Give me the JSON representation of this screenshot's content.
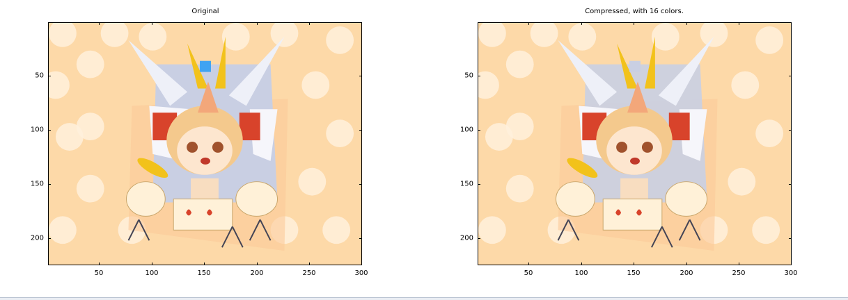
{
  "figure": {
    "panels": [
      {
        "title": "Original",
        "x_ticks": [
          "50",
          "100",
          "150",
          "200",
          "250",
          "300"
        ],
        "y_ticks": [
          "50",
          "100",
          "150",
          "200"
        ],
        "image_desc": "chibi-character-drummer"
      },
      {
        "title": "Compressed, with 16 colors.",
        "x_ticks": [
          "50",
          "100",
          "150",
          "200",
          "250",
          "300"
        ],
        "y_ticks": [
          "50",
          "100",
          "150",
          "200"
        ],
        "image_desc": "chibi-character-drummer-16-colors"
      }
    ]
  },
  "colors": {
    "background_peach": "#fdd9a8",
    "polka_dot": "#fff0dc",
    "mech_gray": "#c9cfe3",
    "hair_gold": "#f4c98d",
    "accent_red": "#d8432b",
    "accent_yellow": "#f2c21b",
    "gem_blue": "#3fa3f2",
    "skin": "#fde6cf"
  }
}
